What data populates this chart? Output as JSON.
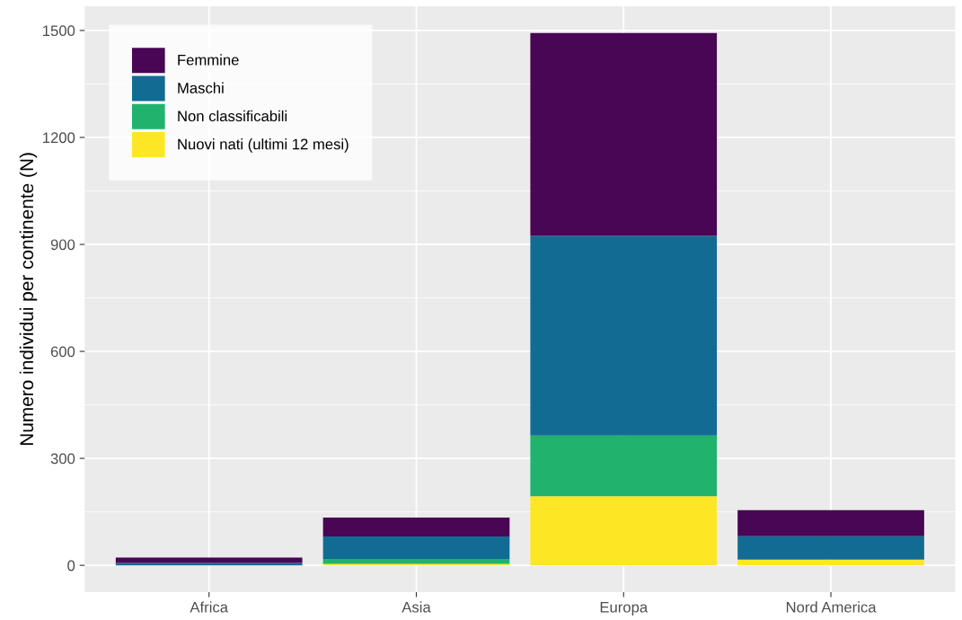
{
  "chart_data": {
    "type": "bar",
    "stacked": true,
    "ylabel": "Numero individui per continente (N)",
    "categories": [
      "Africa",
      "Asia",
      "Europa",
      "Nord America"
    ],
    "series": [
      {
        "name": "Nuovi nati (ultimi 12 mesi)",
        "color": "#fde725",
        "values": [
          0,
          4,
          194,
          16
        ]
      },
      {
        "name": "Non classificabili",
        "color": "#21b26d",
        "values": [
          0,
          14,
          170,
          0
        ]
      },
      {
        "name": "Maschi",
        "color": "#126b93",
        "values": [
          7,
          63,
          560,
          66
        ]
      },
      {
        "name": "Femmine",
        "color": "#480654",
        "values": [
          15,
          53,
          569,
          73
        ]
      }
    ],
    "ylim": [
      -75,
      1568
    ],
    "yticks": [
      0,
      300,
      600,
      900,
      1200,
      1500
    ],
    "grid": true,
    "legend": "top left"
  }
}
